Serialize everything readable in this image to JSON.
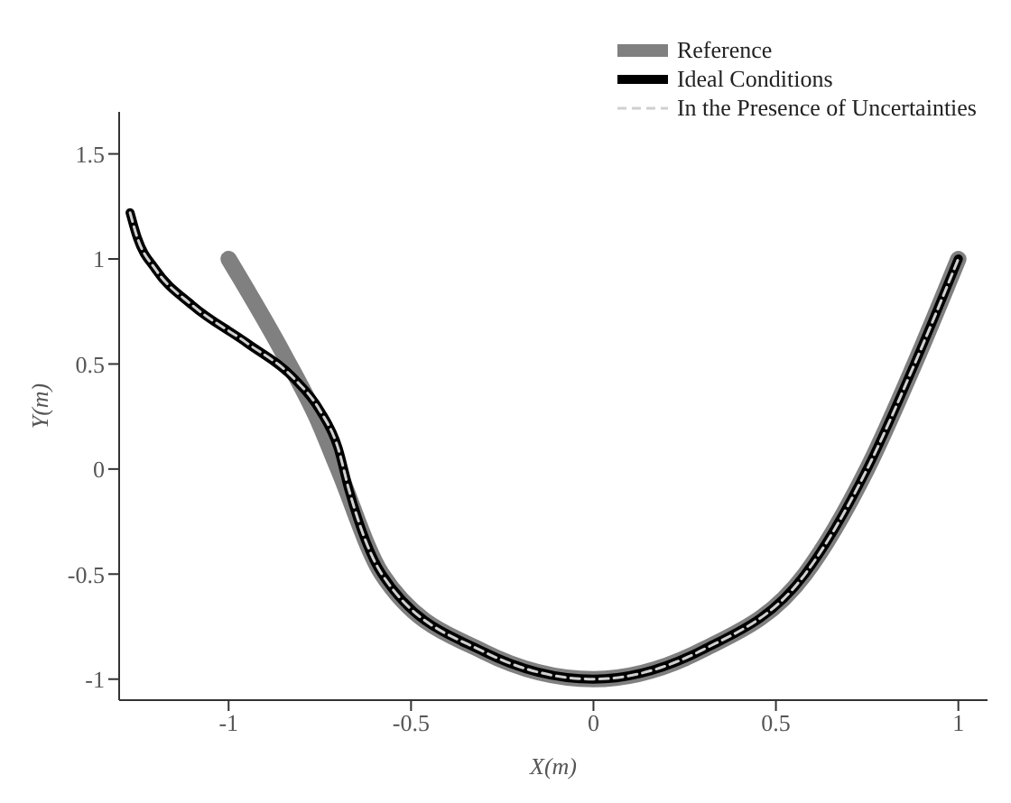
{
  "chart_data": {
    "type": "line",
    "xlabel": "X(m)",
    "ylabel": "Y(m)",
    "xlim": [
      -1.3,
      1.08
    ],
    "xticks": [
      -1,
      -0.5,
      0,
      0.5,
      1
    ],
    "ylim": [
      -1.1,
      1.7
    ],
    "yticks": [
      -1,
      -0.5,
      0,
      0.5,
      1,
      1.5
    ],
    "grid": false,
    "legend": "top right",
    "marker": "none",
    "series": [
      {
        "name": "Reference",
        "color": "#808080",
        "line_style": "solid",
        "x": [
          -1,
          -0.85,
          -0.76,
          -0.7,
          -0.58,
          -0.3,
          0,
          0.3,
          0.58,
          0.75,
          0.88,
          1
        ],
        "values": [
          1,
          0.55,
          0.25,
          0,
          -0.5,
          -0.87,
          -1,
          -0.86,
          -0.5,
          0,
          0.5,
          1
        ]
      },
      {
        "name": "Ideal Conditions",
        "color": "#000000",
        "line_style": "solid",
        "x": [
          -1.27,
          -1.25,
          -1.2,
          -1.1,
          -0.95,
          -0.82,
          -0.75,
          -0.7,
          -0.67,
          -0.58,
          -0.3,
          0,
          0.3,
          0.58,
          0.75,
          0.88,
          1
        ],
        "values": [
          1.22,
          1.1,
          0.95,
          0.78,
          0.6,
          0.43,
          0.28,
          0.1,
          -0.1,
          -0.5,
          -0.87,
          -1,
          -0.86,
          -0.5,
          0,
          0.5,
          1
        ]
      },
      {
        "name": "In the Presence of Uncertainties",
        "color": "#d0d0d0",
        "line_style": "dashed",
        "x": [
          -1.27,
          -1.25,
          -1.2,
          -1.1,
          -0.95,
          -0.82,
          -0.75,
          -0.7,
          -0.67,
          -0.58,
          -0.3,
          0,
          0.3,
          0.58,
          0.75,
          0.88,
          1
        ],
        "values": [
          1.22,
          1.1,
          0.95,
          0.78,
          0.6,
          0.43,
          0.28,
          0.1,
          -0.1,
          -0.5,
          -0.87,
          -1,
          -0.86,
          -0.5,
          0,
          0.5,
          1
        ]
      }
    ]
  }
}
